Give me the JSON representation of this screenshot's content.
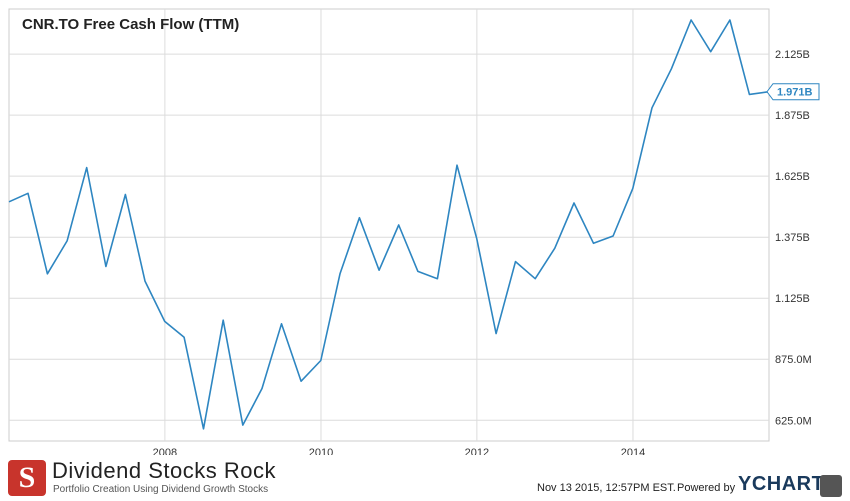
{
  "chart_data": {
    "type": "line",
    "title": "CNR.TO Free Cash Flow (TTM)",
    "xlabel": "",
    "ylabel": "",
    "x_axis": {
      "type": "date",
      "range": [
        "2006-01-01",
        "2015-09-30"
      ],
      "tick_labels": [
        "2008",
        "2010",
        "2012",
        "2014"
      ],
      "tick_values": [
        "2008-01-01",
        "2010-01-01",
        "2012-01-01",
        "2014-01-01"
      ]
    },
    "y_axis": {
      "range": [
        540000000,
        2310000000
      ],
      "tick_labels": [
        "625.0M",
        "875.0M",
        "1.125B",
        "1.375B",
        "1.625B",
        "1.875B",
        "2.125B"
      ],
      "tick_values": [
        625000000,
        875000000,
        1125000000,
        1375000000,
        1625000000,
        1875000000,
        2125000000
      ],
      "position": "right"
    },
    "grid": true,
    "legend": "none",
    "series": [
      {
        "color": "#2e86c1",
        "x": [
          "2006-01-01",
          "2006-03-31",
          "2006-06-30",
          "2006-09-30",
          "2006-12-31",
          "2007-03-31",
          "2007-06-30",
          "2007-09-30",
          "2007-12-31",
          "2008-03-31",
          "2008-06-30",
          "2008-09-30",
          "2008-12-31",
          "2009-03-31",
          "2009-06-30",
          "2009-09-30",
          "2009-12-31",
          "2010-03-31",
          "2010-06-30",
          "2010-09-30",
          "2010-12-31",
          "2011-03-31",
          "2011-06-30",
          "2011-09-30",
          "2011-12-31",
          "2012-03-31",
          "2012-06-30",
          "2012-09-30",
          "2012-12-31",
          "2013-03-31",
          "2013-06-30",
          "2013-09-30",
          "2013-12-31",
          "2014-03-31",
          "2014-06-30",
          "2014-09-30",
          "2014-12-31",
          "2015-03-31",
          "2015-06-30",
          "2015-09-30"
        ],
        "values": [
          1520000000,
          1555000000,
          1225000000,
          1360000000,
          1660000000,
          1255000000,
          1550000000,
          1195000000,
          1030000000,
          965000000,
          590000000,
          1035000000,
          605000000,
          755000000,
          1020000000,
          785000000,
          870000000,
          1225000000,
          1455000000,
          1240000000,
          1425000000,
          1235000000,
          1205000000,
          1670000000,
          1370000000,
          980000000,
          1275000000,
          1205000000,
          1330000000,
          1515000000,
          1350000000,
          1380000000,
          1575000000,
          1905000000,
          2065000000,
          2265000000,
          2135000000,
          2265000000,
          1960000000,
          1971000000
        ]
      }
    ],
    "last_value_label": "1.971B"
  },
  "footer": {
    "brand_initial": "S",
    "brand_name": "Dividend Stocks Rock",
    "brand_tagline": "Portfolio Creation Using Dividend Growth Stocks",
    "timestamp": "Nov 13 2015, 12:57PM EST.",
    "powered_by": "Powered by",
    "ycharts": "YCHARTS"
  }
}
